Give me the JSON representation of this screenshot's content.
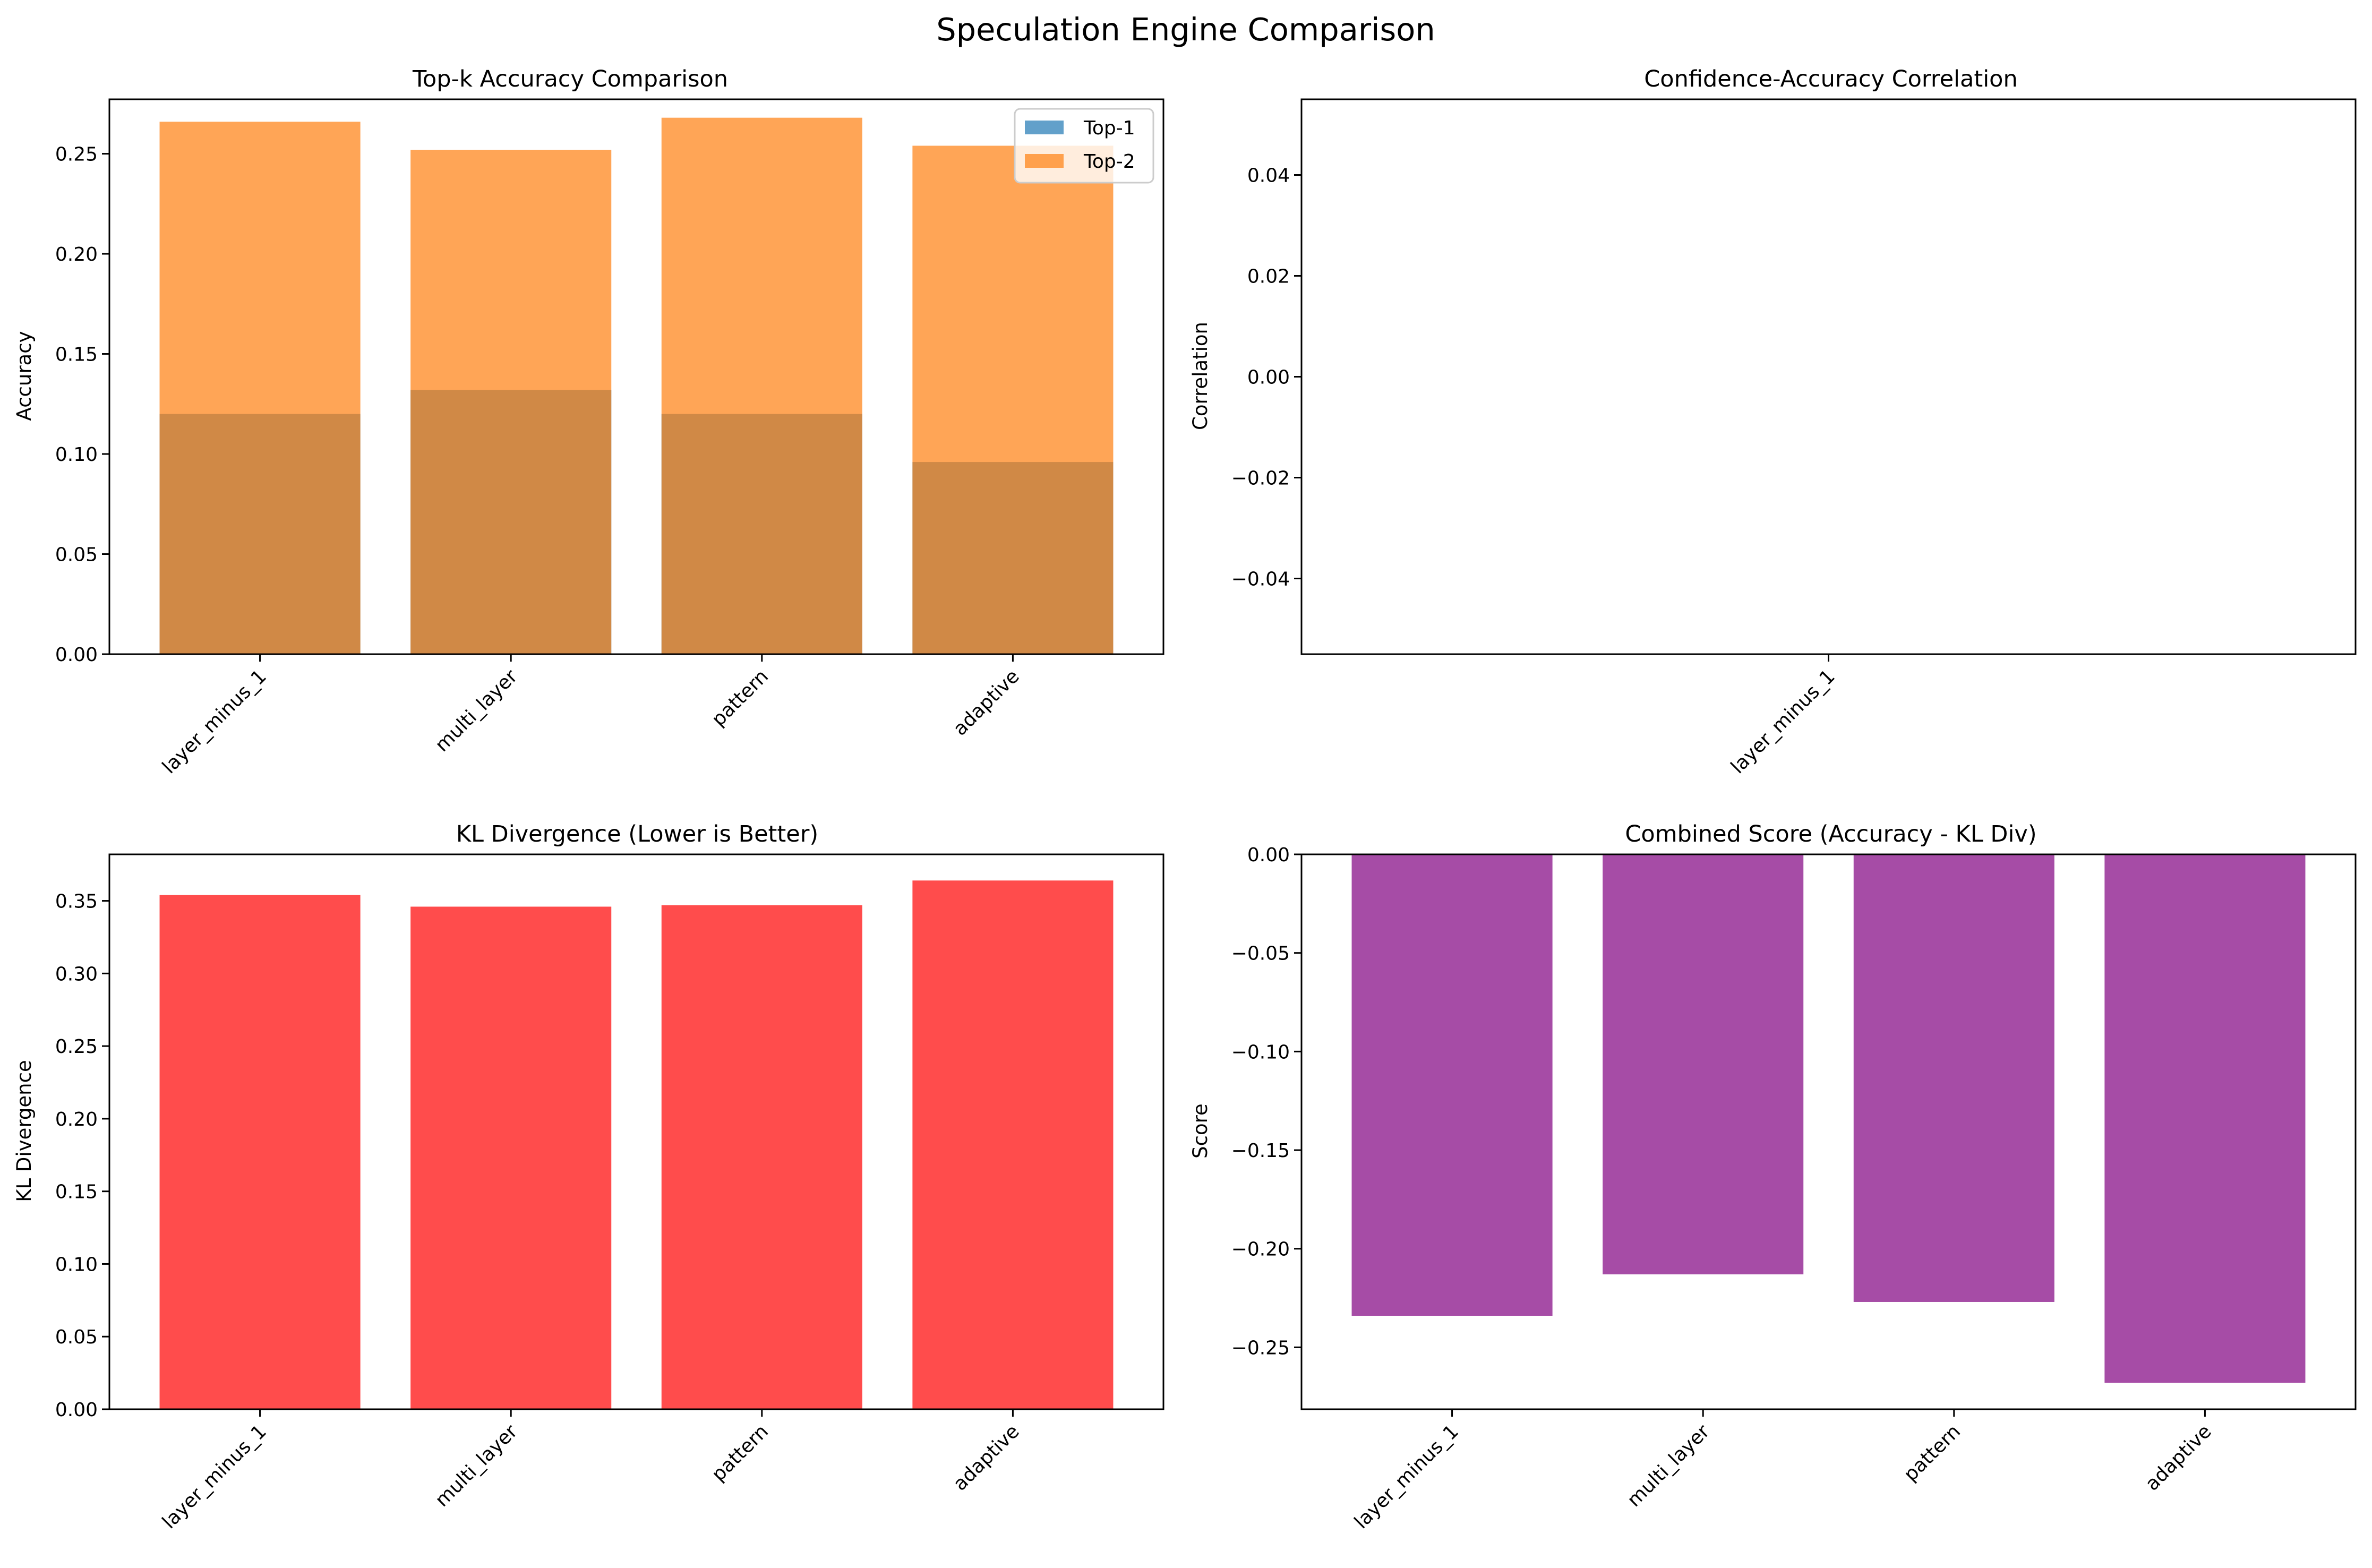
{
  "figure": {
    "title": "Speculation Engine Comparison"
  },
  "colors": {
    "top1": "#1f77b4",
    "top2": "#ff7f0e",
    "kl": "#ff0000",
    "score": "#800080",
    "overlap": "#cf8845"
  },
  "chart_data": [
    {
      "type": "bar",
      "title": "Top-k Accuracy Comparison",
      "xlabel": "",
      "ylabel": "Accuracy",
      "categories": [
        "layer_minus_1",
        "multi_layer",
        "pattern",
        "adaptive"
      ],
      "series": [
        {
          "name": "Top-1",
          "values": [
            0.12,
            0.132,
            0.12,
            0.096
          ]
        },
        {
          "name": "Top-2",
          "values": [
            0.266,
            0.252,
            0.268,
            0.254
          ]
        }
      ],
      "ylim": [
        0,
        0.2772
      ],
      "yticks": [
        "0.00",
        "0.05",
        "0.10",
        "0.15",
        "0.20",
        "0.25"
      ],
      "legend": "top-right",
      "grid": false
    },
    {
      "type": "bar",
      "title": "Confidence-Accuracy Correlation",
      "xlabel": "",
      "ylabel": "Correlation",
      "categories": [
        "layer_minus_1"
      ],
      "values": [
        0.0
      ],
      "ylim": [
        -0.055,
        0.055
      ],
      "yticks": [
        "0.04",
        "0.02",
        "0.00",
        "−0.02",
        "−0.04"
      ],
      "grid": false
    },
    {
      "type": "bar",
      "title": "KL Divergence (Lower is Better)",
      "xlabel": "",
      "ylabel": "KL Divergence",
      "categories": [
        "layer_minus_1",
        "multi_layer",
        "pattern",
        "adaptive"
      ],
      "values": [
        0.354,
        0.346,
        0.347,
        0.364
      ],
      "ylim": [
        0,
        0.382
      ],
      "yticks": [
        "0.00",
        "0.05",
        "0.10",
        "0.15",
        "0.20",
        "0.25",
        "0.30",
        "0.35"
      ],
      "grid": false
    },
    {
      "type": "bar",
      "title": "Combined Score (Accuracy - KL Div)",
      "xlabel": "",
      "ylabel": "Score",
      "categories": [
        "layer_minus_1",
        "multi_layer",
        "pattern",
        "adaptive"
      ],
      "values": [
        -0.234,
        -0.213,
        -0.227,
        -0.268
      ],
      "ylim": [
        -0.2814,
        0
      ],
      "yticks": [
        "0.00",
        "−0.05",
        "−0.10",
        "−0.15",
        "−0.20",
        "−0.25"
      ],
      "grid": false
    }
  ]
}
